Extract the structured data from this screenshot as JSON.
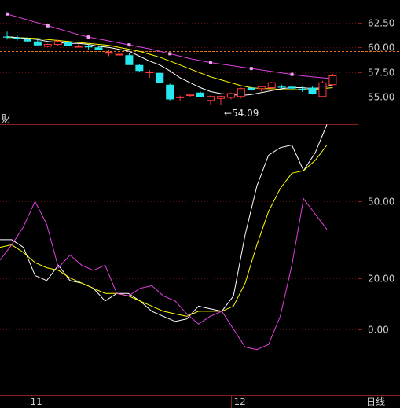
{
  "colors": {
    "background": "#000000",
    "border": "#8a1f1f",
    "grid": "#5a1010",
    "reference_line": "#e07020",
    "candle_up": "#ff3b3b",
    "candle_down": "#27e8ee",
    "ma_short": "#ffffff",
    "ma_mid": "#ffff00",
    "ma_long": "#e040e0",
    "k_line": "#ffffff",
    "d_line": "#ffff00",
    "j_line": "#e040e0",
    "tick_text": "#d0d0d0"
  },
  "status_tag": "财",
  "period_label": "日线",
  "chart_data": [
    {
      "type": "candlestick",
      "title": "",
      "y_ticks": [
        "62.50",
        "60.00",
        "57.50",
        "55.00"
      ],
      "y_tick_values": [
        62.5,
        60.0,
        57.5,
        55.0
      ],
      "ylim": [
        52.5,
        64.5
      ],
      "reference_price": 59.65,
      "low_annotation": {
        "text": "←54.09",
        "value": 54.09,
        "index": 21
      },
      "candles": [
        {
          "o": 61.1,
          "h": 61.6,
          "l": 60.8,
          "c": 61.0
        },
        {
          "o": 61.0,
          "h": 61.2,
          "l": 60.7,
          "c": 60.9
        },
        {
          "o": 60.9,
          "h": 61.0,
          "l": 60.5,
          "c": 60.6
        },
        {
          "o": 60.6,
          "h": 60.8,
          "l": 60.1,
          "c": 60.2
        },
        {
          "o": 60.1,
          "h": 60.4,
          "l": 60.0,
          "c": 60.3
        },
        {
          "o": 60.3,
          "h": 60.8,
          "l": 60.1,
          "c": 60.6
        },
        {
          "o": 60.5,
          "h": 60.7,
          "l": 60.1,
          "c": 60.1
        },
        {
          "o": 60.1,
          "h": 60.3,
          "l": 60.0,
          "c": 60.1
        },
        {
          "o": 60.1,
          "h": 60.3,
          "l": 59.8,
          "c": 60.0
        },
        {
          "o": 60.0,
          "h": 60.2,
          "l": 59.7,
          "c": 59.7
        },
        {
          "o": 59.4,
          "h": 59.7,
          "l": 59.1,
          "c": 59.5
        },
        {
          "o": 59.3,
          "h": 59.5,
          "l": 59.2,
          "c": 59.3
        },
        {
          "o": 59.2,
          "h": 59.4,
          "l": 58.2,
          "c": 58.2
        },
        {
          "o": 58.2,
          "h": 58.3,
          "l": 57.5,
          "c": 57.6
        },
        {
          "o": 57.5,
          "h": 57.7,
          "l": 56.9,
          "c": 57.5
        },
        {
          "o": 57.4,
          "h": 57.5,
          "l": 56.4,
          "c": 56.4
        },
        {
          "o": 56.2,
          "h": 56.3,
          "l": 54.6,
          "c": 54.7
        },
        {
          "o": 54.9,
          "h": 55.1,
          "l": 54.6,
          "c": 54.95
        },
        {
          "o": 55.1,
          "h": 55.3,
          "l": 54.9,
          "c": 55.2
        },
        {
          "o": 55.4,
          "h": 55.5,
          "l": 54.9,
          "c": 54.9
        },
        {
          "o": 54.6,
          "h": 55.1,
          "l": 54.1,
          "c": 55.0
        },
        {
          "o": 54.8,
          "h": 55.1,
          "l": 54.09,
          "c": 55.0
        },
        {
          "o": 54.9,
          "h": 55.4,
          "l": 54.7,
          "c": 55.3
        },
        {
          "o": 55.0,
          "h": 55.9,
          "l": 54.8,
          "c": 55.8
        },
        {
          "o": 55.9,
          "h": 56.1,
          "l": 55.6,
          "c": 55.7
        },
        {
          "o": 55.8,
          "h": 56.0,
          "l": 55.5,
          "c": 56.0
        },
        {
          "o": 55.9,
          "h": 56.5,
          "l": 55.6,
          "c": 56.4
        },
        {
          "o": 56.0,
          "h": 56.2,
          "l": 55.8,
          "c": 55.9
        },
        {
          "o": 56.0,
          "h": 56.1,
          "l": 55.7,
          "c": 55.8
        },
        {
          "o": 55.8,
          "h": 56.0,
          "l": 55.5,
          "c": 55.7
        },
        {
          "o": 55.9,
          "h": 56.0,
          "l": 55.2,
          "c": 55.3
        },
        {
          "o": 55.0,
          "h": 56.6,
          "l": 54.9,
          "c": 56.4
        },
        {
          "o": 56.2,
          "h": 57.3,
          "l": 56.1,
          "c": 57.1
        }
      ],
      "ma_short": [
        61.1,
        61.0,
        60.9,
        60.8,
        60.6,
        60.5,
        60.4,
        60.4,
        60.3,
        60.1,
        60.0,
        59.8,
        59.6,
        59.1,
        58.6,
        58.2,
        57.6,
        56.9,
        56.4,
        55.9,
        55.5,
        55.3,
        55.2,
        55.1,
        55.2,
        55.4,
        55.6,
        55.8,
        55.9,
        55.9,
        55.8,
        55.9,
        56.2
      ],
      "ma_mid": [
        61.0,
        61.0,
        60.95,
        60.9,
        60.8,
        60.7,
        60.6,
        60.5,
        60.4,
        60.3,
        60.2,
        60.0,
        59.8,
        59.6,
        59.3,
        59.0,
        58.6,
        58.2,
        57.8,
        57.4,
        57.0,
        56.7,
        56.4,
        56.1,
        55.9,
        55.8,
        55.8,
        55.7,
        55.7,
        55.7,
        55.7,
        55.8,
        55.9
      ],
      "ma_long": [
        63.4,
        63.1,
        62.8,
        62.5,
        62.2,
        61.9,
        61.6,
        61.3,
        61.05,
        60.85,
        60.65,
        60.45,
        60.25,
        60.05,
        59.85,
        59.6,
        59.35,
        59.1,
        58.85,
        58.65,
        58.45,
        58.3,
        58.15,
        58.0,
        57.85,
        57.7,
        57.55,
        57.4,
        57.25,
        57.1,
        57.0,
        56.9,
        56.8
      ]
    },
    {
      "type": "line",
      "title": "",
      "y_ticks": [
        "50.00",
        "20.00",
        "0.00"
      ],
      "y_tick_values": [
        50.0,
        20.0,
        0.0
      ],
      "ylim": [
        -25,
        78
      ],
      "x_ticks": [
        {
          "label": "11",
          "index": 2
        },
        {
          "label": "12",
          "index": 22
        }
      ],
      "series": [
        {
          "key": "k",
          "values": [
            35,
            35,
            32,
            21,
            19,
            25,
            19,
            18,
            16,
            11,
            14,
            14,
            11,
            7,
            5,
            3,
            4,
            9,
            8,
            7,
            13,
            37,
            56,
            68,
            71,
            72,
            62,
            69,
            80
          ]
        },
        {
          "key": "d",
          "values": [
            32,
            33,
            30,
            26,
            24,
            23,
            20,
            18,
            16,
            14,
            14,
            13,
            11,
            9,
            7,
            6,
            5,
            7,
            7,
            7,
            9,
            18,
            33,
            46,
            55,
            61,
            62,
            66,
            72
          ]
        },
        {
          "key": "j",
          "values": [
            27,
            33,
            40,
            50,
            41,
            24,
            29,
            25,
            23,
            25,
            14,
            13,
            16,
            17,
            13,
            11,
            6,
            2,
            5,
            7,
            0,
            -7,
            -8,
            -6,
            5,
            25,
            51,
            45,
            39
          ]
        }
      ]
    }
  ]
}
